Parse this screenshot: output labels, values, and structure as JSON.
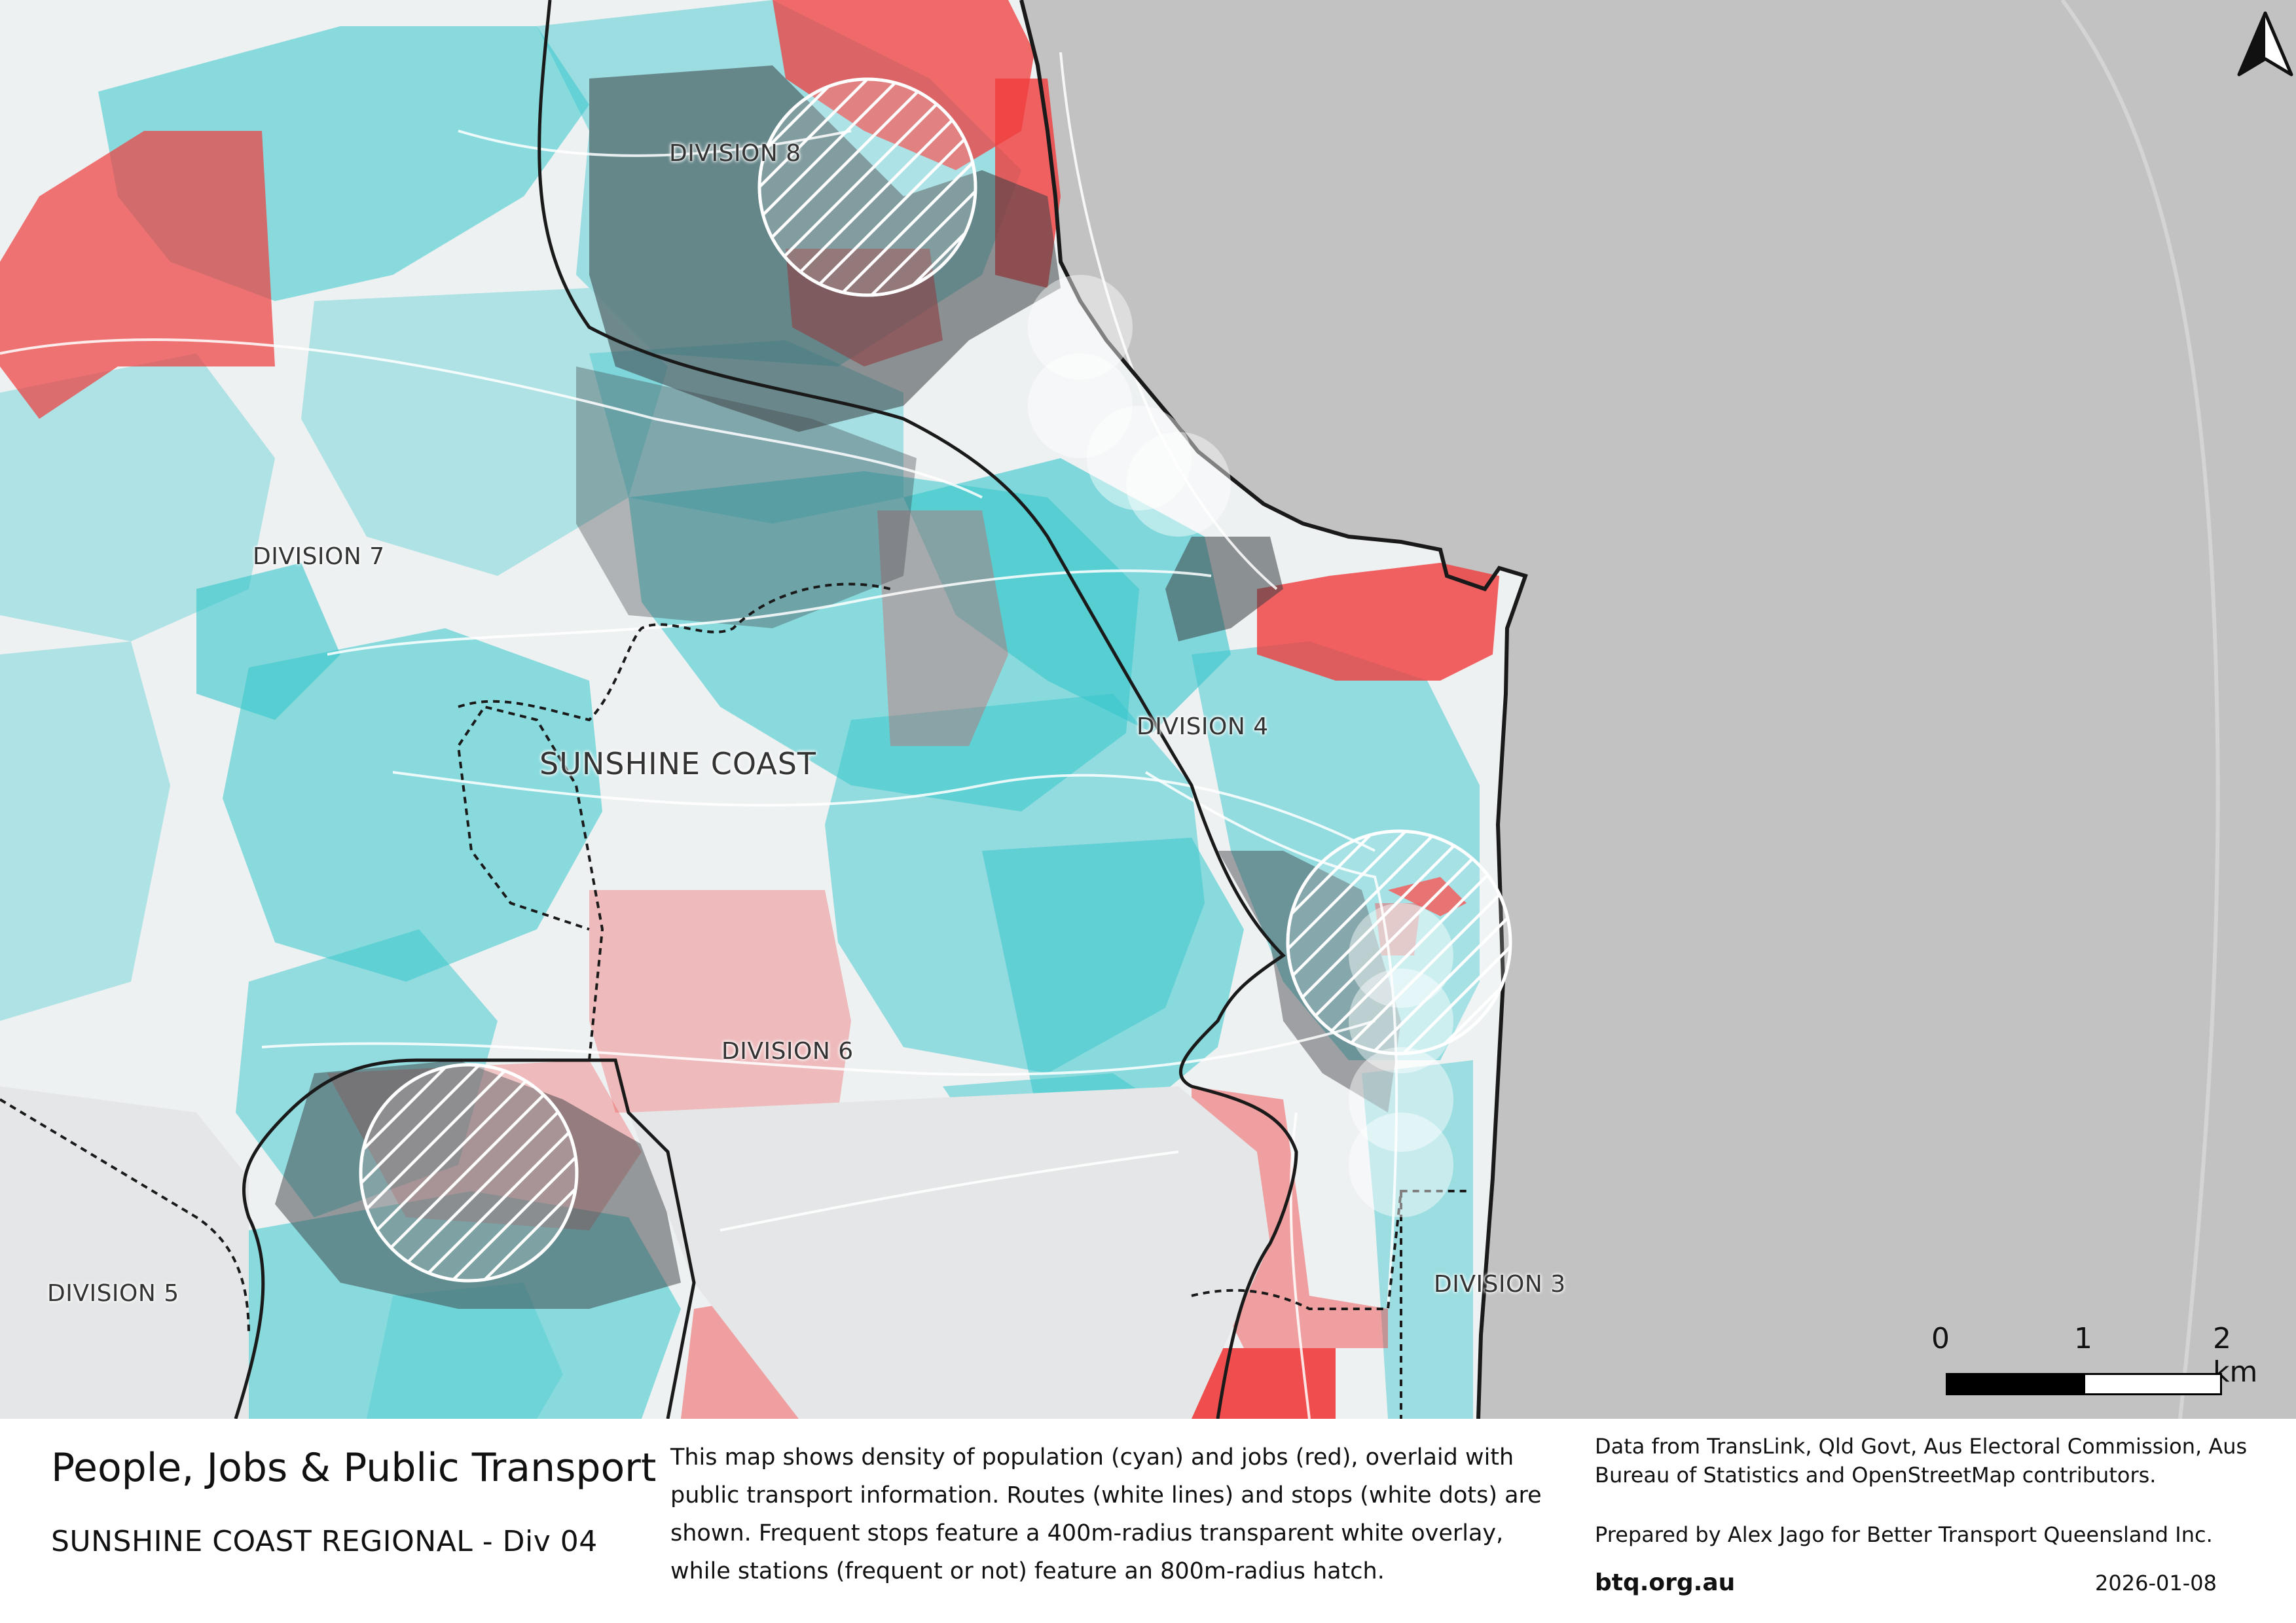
{
  "map": {
    "labels": {
      "division_8": "DIVISION 8",
      "division_7": "DIVISION 7",
      "division_4": "DIVISION 4",
      "division_6": "DIVISION 6",
      "division_5": "DIVISION 5",
      "division_3": "DIVISION 3",
      "sunshine_coast": "SUNSHINE COAST"
    },
    "colors": {
      "population": "#36c6cc",
      "jobs": "#f03c3c",
      "mixed": "#3b3f44",
      "sea": "#c2c2c2",
      "land": "#eef1f2",
      "boundary": "#1a1a1a"
    },
    "icons": {
      "north_arrow": "north-arrow-icon"
    }
  },
  "scale_bar": {
    "tick_0": "0",
    "tick_1": "1",
    "tick_2": "2 km"
  },
  "footer": {
    "title": "People, Jobs & Public Transport",
    "subtitle": "SUNSHINE COAST REGIONAL - Div 04",
    "description": "This map shows density of population (cyan) and jobs (red), overlaid with public transport information. Routes (white lines) and stops (white dots) are shown. Frequent stops feature a 400m-radius transparent white overlay, while stations (frequent or not) feature an 800m-radius hatch.",
    "credits": "Data from TransLink,  Qld Govt,  Aus Electoral Commission, Aus Bureau of Statistics and OpenStreetMap contributors.",
    "prepared_by": "Prepared by Alex Jago for Better Transport Queensland Inc.",
    "website": "btq.org.au",
    "date": "2026-01-08"
  }
}
